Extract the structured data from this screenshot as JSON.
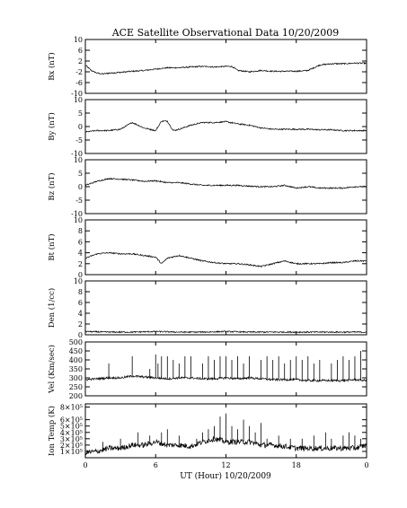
{
  "chart_data": {
    "type": "line",
    "title": "ACE Satellite Observational Data   10/20/2009",
    "xlabel": "UT (Hour)   10/20/2009",
    "x_ticks": [
      "0",
      "6",
      "12",
      "18",
      "0"
    ],
    "xlim": [
      0,
      24
    ],
    "panels": [
      {
        "ylabel": "Bx (nT)",
        "ylim": [
          -10,
          10
        ],
        "yticks": [
          {
            "v": 10,
            "label": "10"
          },
          {
            "v": 6,
            "label": "6"
          },
          {
            "v": 2,
            "label": "2"
          },
          {
            "v": -2,
            "label": "-2"
          },
          {
            "v": -6,
            "label": "-6"
          },
          {
            "v": -10,
            "label": "-10"
          }
        ],
        "series": {
          "x": [
            0,
            0.5,
            1,
            1.5,
            2,
            3,
            4,
            5,
            6,
            7,
            8,
            9,
            10,
            11,
            12,
            12.5,
            13,
            14,
            15,
            16,
            17,
            18,
            19,
            20,
            21,
            22,
            23,
            24
          ],
          "y": [
            0.5,
            -1.5,
            -2.5,
            -2.8,
            -2.5,
            -2.2,
            -1.8,
            -1.5,
            -1.0,
            -0.5,
            -0.5,
            -0.2,
            0.0,
            -0.2,
            0.0,
            0.0,
            -1.5,
            -2.0,
            -1.5,
            -1.8,
            -1.8,
            -1.8,
            -1.5,
            0.5,
            1.0,
            1.0,
            1.2,
            1.2
          ]
        }
      },
      {
        "ylabel": "By (nT)",
        "ylim": [
          -10,
          10
        ],
        "yticks": [
          {
            "v": 10,
            "label": "10"
          },
          {
            "v": 5,
            "label": "5"
          },
          {
            "v": 0,
            "label": "0"
          },
          {
            "v": -5,
            "label": "-5"
          },
          {
            "v": -10,
            "label": "-10"
          }
        ],
        "series": {
          "x": [
            0,
            1,
            2,
            3,
            4,
            5,
            6,
            6.5,
            7,
            7.5,
            8,
            9,
            10,
            11,
            12,
            13,
            14,
            15,
            16,
            17,
            18,
            19,
            20,
            21,
            22,
            23,
            24
          ],
          "y": [
            -2.0,
            -1.5,
            -1.5,
            -1.0,
            1.5,
            -0.5,
            -1.5,
            2.0,
            2.0,
            -1.5,
            -1.0,
            0.5,
            1.5,
            1.5,
            1.8,
            1.0,
            0.5,
            -0.5,
            -1.0,
            -1.0,
            -1.0,
            -1.0,
            -1.2,
            -1.2,
            -1.5,
            -1.5,
            -1.5
          ]
        }
      },
      {
        "ylabel": "Bz (nT)",
        "ylim": [
          -10,
          10
        ],
        "yticks": [
          {
            "v": 10,
            "label": "10"
          },
          {
            "v": 5,
            "label": "5"
          },
          {
            "v": 0,
            "label": "0"
          },
          {
            "v": -5,
            "label": "-5"
          },
          {
            "v": -10,
            "label": "-10"
          }
        ],
        "series": {
          "x": [
            0,
            1,
            2,
            3,
            4,
            5,
            6,
            7,
            8,
            9,
            10,
            11,
            12,
            13,
            14,
            15,
            16,
            17,
            18,
            19,
            20,
            21,
            22,
            23,
            24
          ],
          "y": [
            0.5,
            2.0,
            3.0,
            2.8,
            2.5,
            2.0,
            2.2,
            1.5,
            1.5,
            1.0,
            0.5,
            0.5,
            0.5,
            0.5,
            0.2,
            0.0,
            0.0,
            0.5,
            -0.5,
            0.0,
            -0.5,
            -0.5,
            -0.5,
            0.0,
            0.0
          ]
        }
      },
      {
        "ylabel": "Bt (nT)",
        "ylim": [
          0,
          10
        ],
        "yticks": [
          {
            "v": 10,
            "label": "10"
          },
          {
            "v": 8,
            "label": "8"
          },
          {
            "v": 6,
            "label": "6"
          },
          {
            "v": 4,
            "label": "4"
          },
          {
            "v": 2,
            "label": "2"
          },
          {
            "v": 0,
            "label": "0"
          }
        ],
        "series": {
          "x": [
            0,
            1,
            2,
            3,
            4,
            5,
            6,
            6.5,
            7,
            8,
            9,
            10,
            11,
            12,
            13,
            14,
            15,
            16,
            17,
            18,
            19,
            20,
            21,
            22,
            23,
            24
          ],
          "y": [
            3.0,
            3.8,
            4.0,
            3.8,
            3.8,
            3.5,
            3.2,
            2.0,
            3.0,
            3.5,
            3.0,
            2.5,
            2.2,
            2.0,
            2.0,
            1.8,
            1.5,
            2.0,
            2.5,
            2.0,
            2.0,
            2.0,
            2.2,
            2.2,
            2.5,
            2.5
          ]
        }
      },
      {
        "ylabel": "Den (1/cc)",
        "ylim": [
          0,
          10
        ],
        "yticks": [
          {
            "v": 10,
            "label": "10"
          },
          {
            "v": 8,
            "label": "8"
          },
          {
            "v": 6,
            "label": "6"
          },
          {
            "v": 4,
            "label": "4"
          },
          {
            "v": 2,
            "label": "2"
          },
          {
            "v": 0,
            "label": "0"
          }
        ],
        "series": {
          "x": [
            0,
            2,
            4,
            6,
            8,
            10,
            12,
            14,
            16,
            18,
            20,
            22,
            24
          ],
          "y": [
            0.6,
            0.5,
            0.5,
            0.6,
            0.5,
            0.5,
            0.6,
            0.5,
            0.5,
            0.5,
            0.5,
            0.5,
            0.5
          ]
        }
      },
      {
        "ylabel": "Vel (Km/sec)",
        "ylim": [
          200,
          500
        ],
        "yticks": [
          {
            "v": 500,
            "label": "500"
          },
          {
            "v": 450,
            "label": "450"
          },
          {
            "v": 400,
            "label": "400"
          },
          {
            "v": 350,
            "label": "350"
          },
          {
            "v": 300,
            "label": "300"
          },
          {
            "v": 250,
            "label": "250"
          },
          {
            "v": 200,
            "label": "200"
          }
        ],
        "series": {
          "x": [
            0,
            1,
            2,
            3,
            4,
            5,
            6,
            7,
            8,
            9,
            10,
            11,
            12,
            13,
            14,
            15,
            16,
            17,
            18,
            19,
            20,
            21,
            22,
            23,
            24
          ],
          "y": [
            290,
            295,
            300,
            300,
            310,
            305,
            300,
            295,
            300,
            300,
            295,
            295,
            300,
            295,
            300,
            295,
            290,
            290,
            290,
            285,
            285,
            285,
            285,
            290,
            285
          ]
        },
        "spikes": {
          "x": [
            2.0,
            4.0,
            5.5,
            6.0,
            6.2,
            6.5,
            7.0,
            7.5,
            8.0,
            8.5,
            9.0,
            10.0,
            10.5,
            11.0,
            11.5,
            12.0,
            12.5,
            13.0,
            13.5,
            14.0,
            15.0,
            15.5,
            16.0,
            16.5,
            17.0,
            17.5,
            18.0,
            18.5,
            19.0,
            19.5,
            20.0,
            21.0,
            21.5,
            22.0,
            22.5,
            23.0,
            23.5
          ],
          "y": [
            380,
            420,
            350,
            430,
            380,
            420,
            420,
            400,
            380,
            420,
            420,
            380,
            420,
            400,
            420,
            420,
            400,
            420,
            380,
            420,
            400,
            420,
            400,
            420,
            380,
            400,
            420,
            400,
            420,
            380,
            400,
            380,
            400,
            420,
            400,
            420,
            450
          ]
        }
      },
      {
        "ylabel": "Ion Temp (K)",
        "ylim": [
          0,
          8.5
        ],
        "yticks": [
          {
            "v": 8,
            "label": "8×10⁵"
          },
          {
            "v": 6,
            "label": "6×10⁵"
          },
          {
            "v": 5,
            "label": "5×10⁵"
          },
          {
            "v": 4,
            "label": "4×10⁵"
          },
          {
            "v": 3,
            "label": "3×10⁵"
          },
          {
            "v": 2,
            "label": "2×10⁵"
          },
          {
            "v": 1,
            "label": "1×10⁵"
          }
        ],
        "series": {
          "x": [
            0,
            1,
            2,
            3,
            4,
            5,
            6,
            7,
            8,
            9,
            10,
            11,
            12,
            13,
            14,
            15,
            16,
            17,
            18,
            19,
            20,
            21,
            22,
            23,
            24
          ],
          "y": [
            0.8,
            1.0,
            1.5,
            1.5,
            2.0,
            2.0,
            2.5,
            2.0,
            2.0,
            1.8,
            2.5,
            3.0,
            2.5,
            2.5,
            2.5,
            2.0,
            2.0,
            1.8,
            1.5,
            1.5,
            1.5,
            1.5,
            1.5,
            1.5,
            2.0
          ]
        },
        "spikes": {
          "x": [
            1.5,
            3.0,
            4.5,
            5.5,
            6.5,
            7.0,
            8.0,
            9.5,
            10.0,
            10.5,
            11.0,
            11.5,
            12.0,
            12.5,
            13.0,
            13.5,
            14.0,
            14.5,
            15.0,
            15.5,
            16.5,
            17.5,
            18.5,
            19.5,
            20.5,
            21.0,
            22.0,
            22.5,
            23.0,
            23.5
          ],
          "y": [
            2.5,
            3.0,
            4.0,
            3.5,
            4.0,
            4.5,
            3.5,
            3.0,
            4.0,
            4.5,
            5.0,
            6.5,
            7.0,
            5.0,
            4.5,
            6.0,
            5.0,
            4.0,
            5.5,
            3.0,
            3.5,
            3.0,
            3.0,
            3.5,
            4.0,
            3.0,
            3.5,
            4.0,
            3.5,
            3.0
          ]
        }
      }
    ]
  }
}
